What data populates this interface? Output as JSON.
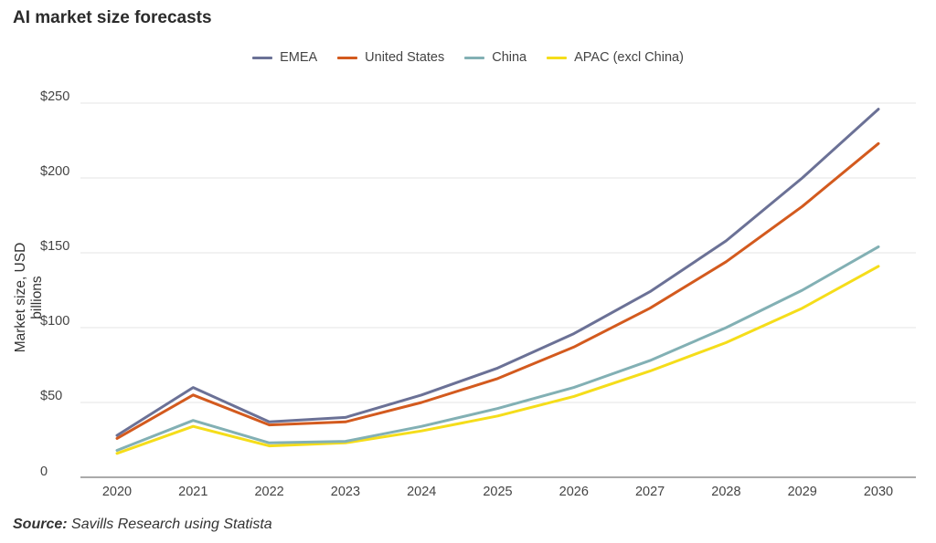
{
  "chart_data": {
    "type": "line",
    "title": "AI market size forecasts",
    "ylabel": "Market size, USD billions",
    "xlabel": "",
    "ylim": [
      0,
      250
    ],
    "yticks": [
      0,
      50,
      100,
      150,
      200,
      250
    ],
    "ytick_labels": [
      "0",
      "$50",
      "$100",
      "$150",
      "$200",
      "$250"
    ],
    "categories": [
      "2020",
      "2021",
      "2022",
      "2023",
      "2024",
      "2025",
      "2026",
      "2027",
      "2028",
      "2029",
      "2030"
    ],
    "grid": "horizontal",
    "legend_position": "top-center",
    "series": [
      {
        "name": "EMEA",
        "color": "#6b7196",
        "values": [
          28,
          60,
          37,
          40,
          55,
          73,
          96,
          124,
          158,
          200,
          246
        ]
      },
      {
        "name": "United States",
        "color": "#d35a1e",
        "values": [
          26,
          55,
          35,
          37,
          50,
          66,
          87,
          113,
          144,
          181,
          223
        ]
      },
      {
        "name": "China",
        "color": "#82b0b4",
        "values": [
          18,
          38,
          23,
          24,
          34,
          46,
          60,
          78,
          100,
          125,
          154
        ]
      },
      {
        "name": "APAC (excl China)",
        "color": "#f5dd1a",
        "values": [
          16,
          34,
          21,
          23,
          31,
          41,
          54,
          71,
          90,
          113,
          141
        ]
      }
    ]
  },
  "source": {
    "label": "Source:",
    "text": "Savills Research using Statista"
  }
}
